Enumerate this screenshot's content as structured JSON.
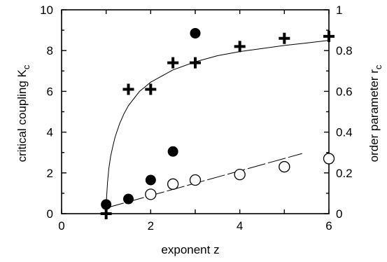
{
  "chart_data": {
    "type": "scatter",
    "xlabel": "exponent z",
    "ylabel_left": "critical coupling K",
    "ylabel_left_sub": "c",
    "ylabel_right": "order parameter r",
    "ylabel_right_sub": "c",
    "xlim": [
      0,
      6
    ],
    "ylim_left": [
      0,
      10
    ],
    "ylim_right": [
      0,
      1
    ],
    "x_ticks": [
      0,
      2,
      4,
      6
    ],
    "y_left_ticks": [
      0,
      2,
      4,
      6,
      8,
      10
    ],
    "y_right_ticks": [
      "0",
      "0.2",
      "0.4",
      "0.6",
      "0.8",
      "1"
    ],
    "grid": false,
    "series": [
      {
        "marker": "filled-circle",
        "axis": "left",
        "points": [
          [
            1.0,
            0.45
          ],
          [
            1.5,
            0.72
          ],
          [
            2.0,
            1.65
          ],
          [
            2.5,
            3.05
          ],
          [
            3.0,
            8.85
          ]
        ]
      },
      {
        "marker": "open-circle",
        "axis": "left",
        "points": [
          [
            2.0,
            0.95
          ],
          [
            2.5,
            1.45
          ],
          [
            3.0,
            1.65
          ],
          [
            4.0,
            1.92
          ],
          [
            5.0,
            2.3
          ],
          [
            6.0,
            2.7
          ]
        ]
      },
      {
        "marker": "plus",
        "axis": "right",
        "points": [
          [
            1.0,
            0.0
          ],
          [
            1.5,
            0.61
          ],
          [
            2.0,
            0.61
          ],
          [
            2.5,
            0.74
          ],
          [
            3.0,
            0.74
          ],
          [
            4.0,
            0.82
          ],
          [
            5.0,
            0.86
          ],
          [
            6.0,
            0.87
          ]
        ]
      }
    ],
    "curves": [
      {
        "style": "solid",
        "axis": "right",
        "points": [
          [
            1.0,
            0.0
          ],
          [
            1.01,
            0.08
          ],
          [
            1.03,
            0.15
          ],
          [
            1.06,
            0.22
          ],
          [
            1.1,
            0.28
          ],
          [
            1.15,
            0.33
          ],
          [
            1.2,
            0.375
          ],
          [
            1.3,
            0.44
          ],
          [
            1.4,
            0.49
          ],
          [
            1.5,
            0.53
          ],
          [
            1.75,
            0.6
          ],
          [
            2.0,
            0.645
          ],
          [
            2.5,
            0.705
          ],
          [
            3.0,
            0.745
          ],
          [
            3.5,
            0.775
          ],
          [
            4.0,
            0.795
          ],
          [
            4.5,
            0.81
          ],
          [
            5.0,
            0.825
          ],
          [
            5.5,
            0.837
          ],
          [
            6.0,
            0.85
          ]
        ]
      },
      {
        "style": "dashed",
        "axis": "left",
        "points": [
          [
            1.0,
            0.28
          ],
          [
            5.4,
            2.95
          ]
        ]
      }
    ]
  }
}
